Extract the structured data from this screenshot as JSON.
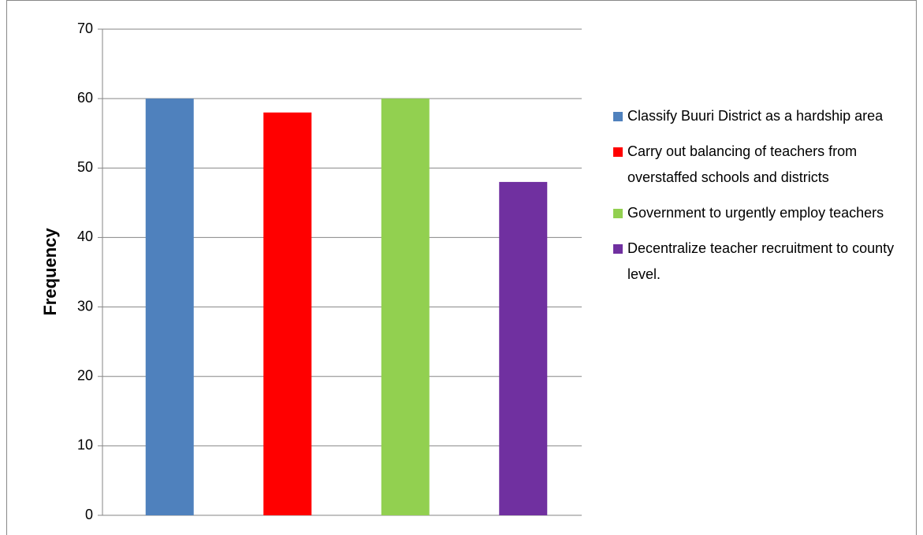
{
  "chart_data": {
    "type": "bar",
    "y_label": "Frequency",
    "categories": [
      null
    ],
    "series": [
      {
        "name": "Classify Buuri District as a hardship area",
        "color": "#4f81bd",
        "values": [
          60
        ]
      },
      {
        "name": "Carry out balancing of teachers from overstaffed schools and districts",
        "color": "#ff0000",
        "values": [
          58
        ]
      },
      {
        "name": "Government to urgently employ teachers",
        "color": "#92d050",
        "values": [
          60
        ]
      },
      {
        "name": "Decentralize teacher recruitment to county level.",
        "color": "#7030a0",
        "values": [
          48
        ]
      }
    ],
    "ylim": [
      0,
      70
    ],
    "yticks": [
      0,
      10,
      20,
      30,
      40,
      50,
      60,
      70
    ],
    "grid": true,
    "legend": "right"
  }
}
